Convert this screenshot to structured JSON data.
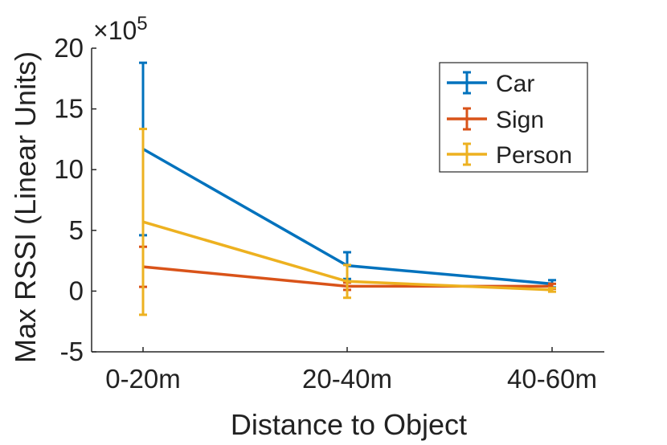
{
  "chart_data": {
    "type": "line",
    "title": "",
    "xlabel": "Distance to Object",
    "ylabel": "Max RSSI (Linear Units)",
    "y_exponent_label": "×10",
    "y_exponent_power": "5",
    "categories": [
      "0-20m",
      "20-40m",
      "40-60m"
    ],
    "ylim": [
      -5,
      20
    ],
    "yticks": [
      -5,
      0,
      5,
      10,
      15,
      20
    ],
    "ytick_labels": [
      "-5",
      "0",
      "5",
      "10",
      "15",
      "20"
    ],
    "legend_position": "top-right",
    "error_bars": true,
    "series": [
      {
        "name": "Car",
        "color": "#0072BD",
        "values": [
          11.7,
          2.1,
          0.6
        ],
        "errors": [
          7.1,
          1.1,
          0.3
        ]
      },
      {
        "name": "Sign",
        "color": "#D95319",
        "values": [
          2.0,
          0.4,
          0.4
        ],
        "errors": [
          1.65,
          0.3,
          0.2
        ]
      },
      {
        "name": "Person",
        "color": "#EDB120",
        "values": [
          5.7,
          0.8,
          0.1
        ],
        "errors": [
          7.65,
          1.35,
          0.15
        ]
      }
    ]
  }
}
